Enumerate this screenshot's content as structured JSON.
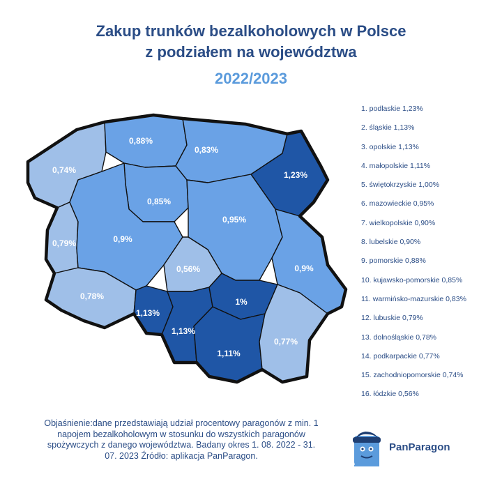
{
  "title": {
    "line1": "Zakup trunków bezalkoholowych w Polsce",
    "line2": "z podziałem na województwa",
    "year": "2022/2023"
  },
  "colors": {
    "title": "#2b4d86",
    "year": "#5b9bdc",
    "very_light": "#9fbfe8",
    "light": "#6aa2e6",
    "medium": "#3a7bd5",
    "dark": "#1f56a6",
    "border": "#111111"
  },
  "regions": [
    {
      "name": "zachodniopomorskie",
      "value": "0,74%"
    },
    {
      "name": "pomorskie",
      "value": "0,88%"
    },
    {
      "name": "warmińsko-mazurskie",
      "value": "0,83%"
    },
    {
      "name": "podlaskie",
      "value": "1,23%"
    },
    {
      "name": "kujawsko-pomorskie",
      "value": "0,85%"
    },
    {
      "name": "mazowieckie",
      "value": "0,95%"
    },
    {
      "name": "lubuskie",
      "value": "0,79%"
    },
    {
      "name": "wielkopolskie",
      "value": "0,9%"
    },
    {
      "name": "łódzkie",
      "value": "0,56%"
    },
    {
      "name": "lubelskie",
      "value": "0,9%"
    },
    {
      "name": "dolnośląskie",
      "value": "0,78%"
    },
    {
      "name": "opolskie",
      "value": "1,13%"
    },
    {
      "name": "śląskie",
      "value": "1,13%"
    },
    {
      "name": "świętokrzyskie",
      "value": "1%"
    },
    {
      "name": "małopolskie",
      "value": "1,11%"
    },
    {
      "name": "podkarpackie",
      "value": "0,77%"
    }
  ],
  "ranking": [
    "1. podlaskie 1,23%",
    "2. śląskie 1,13%",
    "3. opolskie 1,13%",
    "4. małopolskie 1,11%",
    "5. świętokrzyskie 1,00%",
    "6. mazowieckie 0,95%",
    "7. wielkopolskie 0,90%",
    "8. lubelskie 0,90%",
    "9. pomorskie 0,88%",
    "10. kujawsko-pomorskie 0,85%",
    "11. warmińsko-mazurskie 0,83%",
    "12. lubuskie 0,79%",
    "13. dolnośląskie 0,78%",
    "14. podkarpackie 0,77%",
    "15. zachodniopomorskie 0,74%",
    "16. łódzkie 0,56%"
  ],
  "explanation": "Objaśnienie:dane przedstawiają udział procentowy paragonów z min. 1 napojem bezalkoholowym w stosunku do wszystkich paragonów spożywczych z danego województwa. Badany okres 1. 08. 2022 - 31. 07. 2023 Źródło: aplikacja PanParagon.",
  "brand": {
    "name": "PanParagon",
    "logo": "receipt-mascot-icon"
  }
}
